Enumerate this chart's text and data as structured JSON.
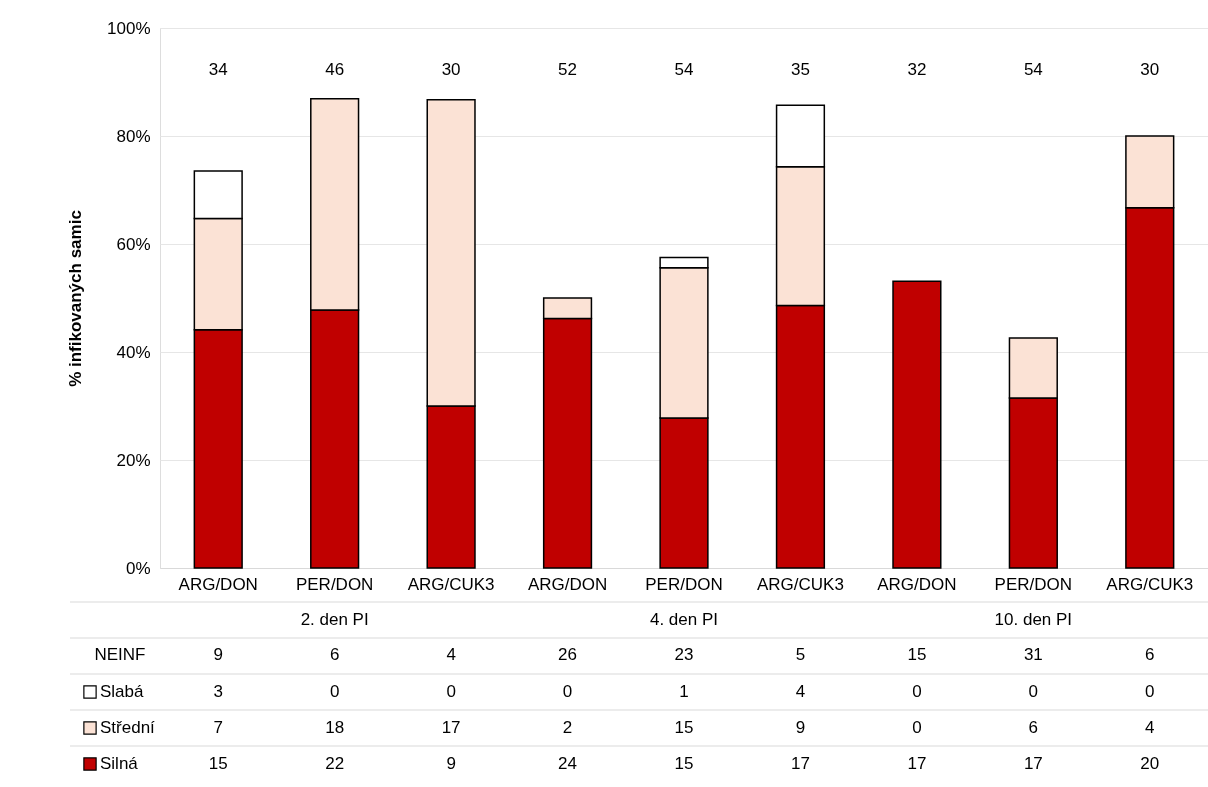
{
  "chart_data": {
    "type": "bar",
    "stacked": true,
    "ylabel": "% infikovaných samic",
    "categories": [
      "ARG/DON",
      "PER/DON",
      "ARG/CUK3",
      "ARG/DON",
      "PER/DON",
      "ARG/CUK3",
      "ARG/DON",
      "PER/DON",
      "ARG/CUK3"
    ],
    "series": [
      {
        "name": "Silná",
        "color": "#c00000",
        "values": [
          44.1,
          47.8,
          30.0,
          46.2,
          27.8,
          48.6,
          53.1,
          31.5,
          66.7
        ]
      },
      {
        "name": "Střední",
        "color": "#fbe2d5",
        "values": [
          20.6,
          39.1,
          56.7,
          3.8,
          27.8,
          25.7,
          null,
          11.1,
          13.3
        ]
      },
      {
        "name": "Slabá",
        "color": "#ffffff",
        "values": [
          8.8,
          null,
          null,
          null,
          1.9,
          11.4,
          null,
          null,
          null
        ]
      }
    ],
    "annotations": [
      "34",
      "46",
      "30",
      "52",
      "54",
      "35",
      "32",
      "54",
      "30",
      "2. den PI",
      "4. den PI",
      "10. den PI",
      "NEINF",
      "9",
      "6",
      "4",
      "26",
      "23",
      "5",
      "15",
      "31",
      "6",
      "3",
      "0",
      "0",
      "0",
      "1",
      "4",
      "0",
      "0",
      "0",
      "7",
      "18",
      "17",
      "2",
      "15",
      "9",
      "0",
      "6",
      "4",
      "15",
      "22",
      "9",
      "24",
      "15",
      "17",
      "17",
      "17",
      "20"
    ],
    "ylim": [
      0,
      100
    ],
    "yticks": [
      {
        "value": 0,
        "label": "0%"
      },
      {
        "value": 20,
        "label": "20%"
      },
      {
        "value": 40,
        "label": "40%"
      },
      {
        "value": 60,
        "label": "60%"
      },
      {
        "value": 80,
        "label": "80%"
      },
      {
        "value": 100,
        "label": "100%"
      }
    ],
    "grid": "y",
    "legend": "bottom"
  }
}
